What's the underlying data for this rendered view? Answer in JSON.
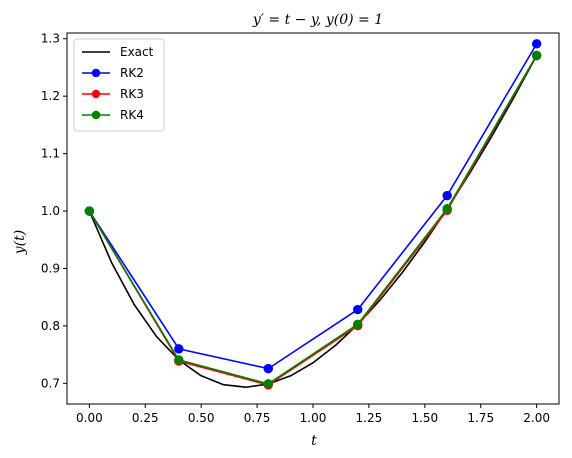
{
  "chart_data": {
    "type": "line",
    "title": "y′ = t − y, y(0) = 1",
    "xlabel": "t",
    "ylabel": "y(t)",
    "xlim": [
      -0.1,
      2.1
    ],
    "ylim": [
      0.664,
      1.31
    ],
    "x_ticks": [
      "0.00",
      "0.25",
      "0.50",
      "0.75",
      "1.00",
      "1.25",
      "1.50",
      "1.75",
      "2.00"
    ],
    "y_ticks": [
      "0.7",
      "0.8",
      "0.9",
      "1.0",
      "1.1",
      "1.2",
      "1.3"
    ],
    "grid": false,
    "legend_position": "top-left",
    "series": [
      {
        "name": "Exact",
        "color": "#000000",
        "markers": false,
        "x": [
          0.0,
          0.1,
          0.2,
          0.3,
          0.4,
          0.5,
          0.6,
          0.7,
          0.8,
          0.9,
          1.0,
          1.1,
          1.2,
          1.3,
          1.4,
          1.5,
          1.6,
          1.7,
          1.8,
          1.9,
          2.0
        ],
        "y": [
          1.0,
          0.9097,
          0.8375,
          0.7816,
          0.7406,
          0.7131,
          0.6976,
          0.6932,
          0.6987,
          0.7131,
          0.7358,
          0.7659,
          0.8024,
          0.8451,
          0.8932,
          0.9463,
          1.0038,
          1.0654,
          1.1306,
          1.1991,
          1.2707
        ]
      },
      {
        "name": "RK2",
        "color": "#0000ff",
        "markers": true,
        "x": [
          0.0,
          0.4,
          0.8,
          1.2,
          1.6,
          2.0
        ],
        "y": [
          1.0,
          0.76,
          0.7256,
          0.8284,
          1.027,
          1.2911
        ]
      },
      {
        "name": "RK3",
        "color": "#ff0000",
        "markers": true,
        "x": [
          0.0,
          0.4,
          0.8,
          1.2,
          1.6,
          2.0
        ],
        "y": [
          1.0,
          0.7387,
          0.6972,
          0.8003,
          1.0012,
          1.2704
        ]
      },
      {
        "name": "RK4",
        "color": "#008000",
        "markers": true,
        "x": [
          0.0,
          0.4,
          0.8,
          1.2,
          1.6,
          2.0
        ],
        "y": [
          1.0,
          0.7408,
          0.6991,
          0.8028,
          1.0041,
          1.2712
        ]
      }
    ]
  }
}
